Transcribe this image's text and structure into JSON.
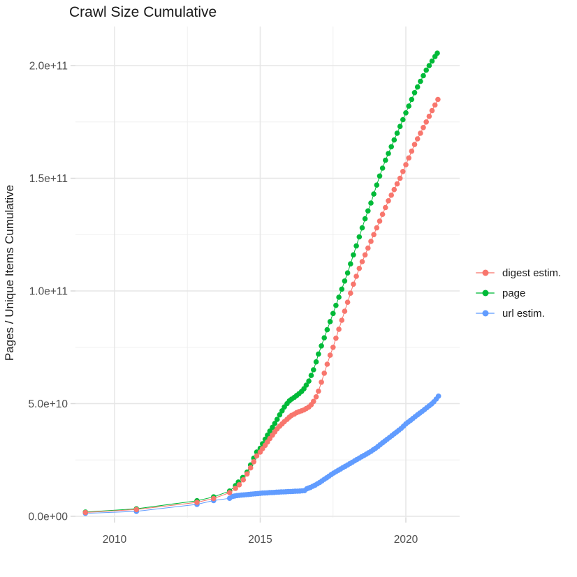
{
  "chart": {
    "title": "Crawl Size Cumulative",
    "ylabel": "Pages / Unique Items Cumulative"
  },
  "chart_data": {
    "type": "scatter",
    "title": "Crawl Size Cumulative",
    "xlabel": "",
    "ylabel": "Pages / Unique Items Cumulative",
    "grid": true,
    "legend_position": "right",
    "background": "#ffffff",
    "grid_major_color": "#e6e6e6",
    "grid_minor_color": "#f0f0f0",
    "tick_color": "#d9d9d9",
    "tick_label_color": "#4d4d4d",
    "x_ticks": [
      {
        "label": "2010",
        "value": 2010
      },
      {
        "label": "2015",
        "value": 2015
      },
      {
        "label": "2020",
        "value": 2020
      }
    ],
    "y_ticks": [
      {
        "label": "0.0e+00",
        "value": 0
      },
      {
        "label": "5.0e+10",
        "value": 50000000000.0
      },
      {
        "label": "1.0e+11",
        "value": 100000000000.0
      },
      {
        "label": "1.5e+11",
        "value": 150000000000.0
      },
      {
        "label": "2.0e+11",
        "value": 200000000000.0
      }
    ],
    "xlim": [
      2008.65,
      2021.85
    ],
    "ylim": [
      -9000000000.0,
      218000000000.0
    ],
    "series": [
      {
        "name": "digest estim.",
        "color": "#F8766D",
        "points": [
          [
            2009.0,
            1700000000.0
          ],
          [
            2010.75,
            3000000000.0
          ],
          [
            2012.83,
            6200000000.0
          ],
          [
            2013.4,
            7900000000.0
          ],
          [
            2013.95,
            10500000000.0
          ],
          [
            2014.15,
            12400000000.0
          ],
          [
            2014.28,
            14000000000.0
          ],
          [
            2014.42,
            16200000000.0
          ],
          [
            2014.55,
            18800000000.0
          ],
          [
            2014.67,
            21500000000.0
          ],
          [
            2014.78,
            24200000000.0
          ],
          [
            2014.88,
            26800000000.0
          ],
          [
            2015.0,
            28500000000.0
          ],
          [
            2015.08,
            30000000000.0
          ],
          [
            2015.17,
            31500000000.0
          ],
          [
            2015.25,
            33000000000.0
          ],
          [
            2015.33,
            34500000000.0
          ],
          [
            2015.42,
            36000000000.0
          ],
          [
            2015.5,
            37500000000.0
          ],
          [
            2015.58,
            38800000000.0
          ],
          [
            2015.67,
            40000000000.0
          ],
          [
            2015.75,
            41000000000.0
          ],
          [
            2015.83,
            42000000000.0
          ],
          [
            2015.92,
            43000000000.0
          ],
          [
            2016.0,
            44000000000.0
          ],
          [
            2016.08,
            44800000000.0
          ],
          [
            2016.17,
            45400000000.0
          ],
          [
            2016.25,
            46000000000.0
          ],
          [
            2016.33,
            46400000000.0
          ],
          [
            2016.42,
            46800000000.0
          ],
          [
            2016.5,
            47200000000.0
          ],
          [
            2016.58,
            47800000000.0
          ],
          [
            2016.67,
            48500000000.0
          ],
          [
            2016.75,
            49500000000.0
          ],
          [
            2016.83,
            51000000000.0
          ],
          [
            2016.92,
            53000000000.0
          ],
          [
            2017.0,
            55500000000.0
          ],
          [
            2017.1,
            59500000000.0
          ],
          [
            2017.2,
            63500000000.0
          ],
          [
            2017.3,
            67500000000.0
          ],
          [
            2017.4,
            71500000000.0
          ],
          [
            2017.5,
            75000000000.0
          ],
          [
            2017.6,
            79000000000.0
          ],
          [
            2017.7,
            83000000000.0
          ],
          [
            2017.8,
            87000000000.0
          ],
          [
            2017.9,
            91000000000.0
          ],
          [
            2018.0,
            95000000000.0
          ],
          [
            2018.1,
            99000000000.0
          ],
          [
            2018.2,
            103000000000.0
          ],
          [
            2018.3,
            106500000000.0
          ],
          [
            2018.4,
            110000000000.0
          ],
          [
            2018.5,
            113000000000.0
          ],
          [
            2018.6,
            116000000000.0
          ],
          [
            2018.7,
            119000000000.0
          ],
          [
            2018.8,
            122000000000.0
          ],
          [
            2018.9,
            125000000000.0
          ],
          [
            2019.0,
            128000000000.0
          ],
          [
            2019.1,
            131000000000.0
          ],
          [
            2019.2,
            134000000000.0
          ],
          [
            2019.3,
            137000000000.0
          ],
          [
            2019.4,
            140000000000.0
          ],
          [
            2019.5,
            142500000000.0
          ],
          [
            2019.6,
            145000000000.0
          ],
          [
            2019.7,
            147500000000.0
          ],
          [
            2019.8,
            150000000000.0
          ],
          [
            2019.9,
            153000000000.0
          ],
          [
            2020.0,
            156000000000.0
          ],
          [
            2020.1,
            159000000000.0
          ],
          [
            2020.2,
            162000000000.0
          ],
          [
            2020.3,
            165000000000.0
          ],
          [
            2020.4,
            167500000000.0
          ],
          [
            2020.5,
            170000000000.0
          ],
          [
            2020.6,
            172500000000.0
          ],
          [
            2020.7,
            175000000000.0
          ],
          [
            2020.8,
            177500000000.0
          ],
          [
            2020.9,
            180000000000.0
          ],
          [
            2021.0,
            182500000000.0
          ],
          [
            2021.1,
            185000000000.0
          ]
        ]
      },
      {
        "name": "page",
        "color": "#00BA38",
        "points": [
          [
            2009.0,
            1900000000.0
          ],
          [
            2010.75,
            3300000000.0
          ],
          [
            2012.83,
            6900000000.0
          ],
          [
            2013.4,
            8600000000.0
          ],
          [
            2013.95,
            11200000000.0
          ],
          [
            2014.15,
            13600000000.0
          ],
          [
            2014.25,
            15200000000.0
          ],
          [
            2014.4,
            17200000000.0
          ],
          [
            2014.55,
            19600000000.0
          ],
          [
            2014.67,
            22800000000.0
          ],
          [
            2014.78,
            25800000000.0
          ],
          [
            2014.88,
            28500000000.0
          ],
          [
            2015.0,
            30200000000.0
          ],
          [
            2015.08,
            32200000000.0
          ],
          [
            2015.17,
            34200000000.0
          ],
          [
            2015.25,
            36000000000.0
          ],
          [
            2015.33,
            37800000000.0
          ],
          [
            2015.42,
            39500000000.0
          ],
          [
            2015.5,
            41200000000.0
          ],
          [
            2015.58,
            43000000000.0
          ],
          [
            2015.67,
            45000000000.0
          ],
          [
            2015.75,
            46800000000.0
          ],
          [
            2015.83,
            48500000000.0
          ],
          [
            2015.92,
            50000000000.0
          ],
          [
            2016.0,
            51200000000.0
          ],
          [
            2016.08,
            52000000000.0
          ],
          [
            2016.17,
            52800000000.0
          ],
          [
            2016.25,
            53600000000.0
          ],
          [
            2016.33,
            54400000000.0
          ],
          [
            2016.42,
            55400000000.0
          ],
          [
            2016.5,
            56600000000.0
          ],
          [
            2016.58,
            58200000000.0
          ],
          [
            2016.67,
            60000000000.0
          ],
          [
            2016.75,
            62500000000.0
          ],
          [
            2016.83,
            65000000000.0
          ],
          [
            2016.92,
            68500000000.0
          ],
          [
            2017.0,
            72000000000.0
          ],
          [
            2017.1,
            75600000000.0
          ],
          [
            2017.2,
            79200000000.0
          ],
          [
            2017.3,
            82800000000.0
          ],
          [
            2017.4,
            86400000000.0
          ],
          [
            2017.5,
            90000000000.0
          ],
          [
            2017.6,
            93600000000.0
          ],
          [
            2017.7,
            97200000000.0
          ],
          [
            2017.8,
            100800000000.0
          ],
          [
            2017.9,
            104400000000.0
          ],
          [
            2018.0,
            108000000000.0
          ],
          [
            2018.1,
            112000000000.0
          ],
          [
            2018.2,
            116000000000.0
          ],
          [
            2018.3,
            120000000000.0
          ],
          [
            2018.4,
            124000000000.0
          ],
          [
            2018.5,
            128000000000.0
          ],
          [
            2018.6,
            132000000000.0
          ],
          [
            2018.7,
            135500000000.0
          ],
          [
            2018.8,
            139000000000.0
          ],
          [
            2018.9,
            143000000000.0
          ],
          [
            2019.0,
            147000000000.0
          ],
          [
            2019.1,
            151000000000.0
          ],
          [
            2019.2,
            154500000000.0
          ],
          [
            2019.3,
            158000000000.0
          ],
          [
            2019.4,
            161000000000.0
          ],
          [
            2019.5,
            164000000000.0
          ],
          [
            2019.6,
            167000000000.0
          ],
          [
            2019.7,
            170000000000.0
          ],
          [
            2019.8,
            173000000000.0
          ],
          [
            2019.9,
            176000000000.0
          ],
          [
            2020.0,
            179000000000.0
          ],
          [
            2020.1,
            182000000000.0
          ],
          [
            2020.2,
            185000000000.0
          ],
          [
            2020.3,
            188000000000.0
          ],
          [
            2020.4,
            190500000000.0
          ],
          [
            2020.5,
            193000000000.0
          ],
          [
            2020.6,
            195500000000.0
          ],
          [
            2020.7,
            198000000000.0
          ],
          [
            2020.8,
            200000000000.0
          ],
          [
            2020.9,
            202000000000.0
          ],
          [
            2021.0,
            204000000000.0
          ],
          [
            2021.08,
            205500000000.0
          ]
        ]
      },
      {
        "name": "url estim.",
        "color": "#619CFF",
        "points": [
          [
            2009.0,
            1300000000.0
          ],
          [
            2010.75,
            2200000000.0
          ],
          [
            2012.83,
            5300000000.0
          ],
          [
            2013.4,
            7000000000.0
          ],
          [
            2013.95,
            8000000000.0
          ],
          [
            2014.05,
            8800000000.0
          ],
          [
            2014.12,
            9000000000.0
          ],
          [
            2014.2,
            9200000000.0
          ],
          [
            2014.28,
            9300000000.0
          ],
          [
            2014.36,
            9400000000.0
          ],
          [
            2014.44,
            9500000000.0
          ],
          [
            2014.52,
            9600000000.0
          ],
          [
            2014.6,
            9700000000.0
          ],
          [
            2014.68,
            9800000000.0
          ],
          [
            2014.76,
            9900000000.0
          ],
          [
            2014.84,
            10000000000.0
          ],
          [
            2014.92,
            10100000000.0
          ],
          [
            2015.0,
            10200000000.0
          ],
          [
            2015.08,
            10300000000.0
          ],
          [
            2015.16,
            10350000000.0
          ],
          [
            2015.24,
            10400000000.0
          ],
          [
            2015.32,
            10500000000.0
          ],
          [
            2015.4,
            10550000000.0
          ],
          [
            2015.48,
            10600000000.0
          ],
          [
            2015.56,
            10700000000.0
          ],
          [
            2015.64,
            10750000000.0
          ],
          [
            2015.72,
            10800000000.0
          ],
          [
            2015.8,
            10850000000.0
          ],
          [
            2015.88,
            10900000000.0
          ],
          [
            2015.96,
            10950000000.0
          ],
          [
            2016.04,
            11000000000.0
          ],
          [
            2016.12,
            11050000000.0
          ],
          [
            2016.2,
            11100000000.0
          ],
          [
            2016.28,
            11150000000.0
          ],
          [
            2016.36,
            11200000000.0
          ],
          [
            2016.44,
            11300000000.0
          ],
          [
            2016.52,
            11400000000.0
          ],
          [
            2016.6,
            12200000000.0
          ],
          [
            2016.66,
            12500000000.0
          ],
          [
            2016.72,
            12800000000.0
          ],
          [
            2016.8,
            13300000000.0
          ],
          [
            2016.88,
            13800000000.0
          ],
          [
            2016.96,
            14400000000.0
          ],
          [
            2017.04,
            15000000000.0
          ],
          [
            2017.12,
            15700000000.0
          ],
          [
            2017.2,
            16400000000.0
          ],
          [
            2017.28,
            17100000000.0
          ],
          [
            2017.36,
            17800000000.0
          ],
          [
            2017.44,
            18500000000.0
          ],
          [
            2017.52,
            19200000000.0
          ],
          [
            2017.6,
            19800000000.0
          ],
          [
            2017.68,
            20400000000.0
          ],
          [
            2017.76,
            21000000000.0
          ],
          [
            2017.84,
            21600000000.0
          ],
          [
            2017.92,
            22200000000.0
          ],
          [
            2018.0,
            22800000000.0
          ],
          [
            2018.08,
            23400000000.0
          ],
          [
            2018.16,
            24000000000.0
          ],
          [
            2018.24,
            24600000000.0
          ],
          [
            2018.32,
            25200000000.0
          ],
          [
            2018.4,
            25800000000.0
          ],
          [
            2018.48,
            26400000000.0
          ],
          [
            2018.56,
            27000000000.0
          ],
          [
            2018.64,
            27600000000.0
          ],
          [
            2018.72,
            28200000000.0
          ],
          [
            2018.8,
            28800000000.0
          ],
          [
            2018.88,
            29500000000.0
          ],
          [
            2018.96,
            30200000000.0
          ],
          [
            2019.04,
            31000000000.0
          ],
          [
            2019.12,
            31800000000.0
          ],
          [
            2019.2,
            32600000000.0
          ],
          [
            2019.28,
            33400000000.0
          ],
          [
            2019.36,
            34200000000.0
          ],
          [
            2019.44,
            35000000000.0
          ],
          [
            2019.52,
            35800000000.0
          ],
          [
            2019.6,
            36600000000.0
          ],
          [
            2019.68,
            37400000000.0
          ],
          [
            2019.76,
            38200000000.0
          ],
          [
            2019.84,
            39000000000.0
          ],
          [
            2019.92,
            40000000000.0
          ],
          [
            2020.0,
            41000000000.0
          ],
          [
            2020.08,
            41800000000.0
          ],
          [
            2020.16,
            42600000000.0
          ],
          [
            2020.24,
            43400000000.0
          ],
          [
            2020.32,
            44200000000.0
          ],
          [
            2020.4,
            45000000000.0
          ],
          [
            2020.48,
            45800000000.0
          ],
          [
            2020.56,
            46600000000.0
          ],
          [
            2020.64,
            47400000000.0
          ],
          [
            2020.72,
            48200000000.0
          ],
          [
            2020.8,
            49000000000.0
          ],
          [
            2020.88,
            49800000000.0
          ],
          [
            2020.96,
            50800000000.0
          ],
          [
            2021.04,
            52000000000.0
          ],
          [
            2021.12,
            53300000000.0
          ]
        ]
      }
    ]
  }
}
